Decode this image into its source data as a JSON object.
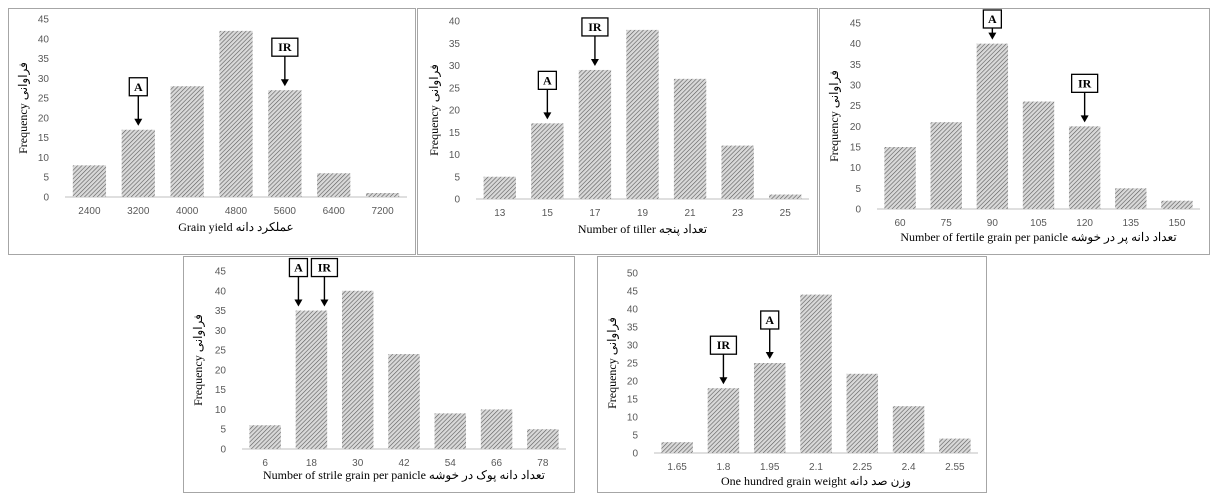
{
  "colors": {
    "bar_pattern_fg": "#5a5a5a",
    "bar_pattern_bg": "#d9d9d9",
    "axis": "#bfbfbf",
    "tick_text": "#595959",
    "border": "#a6a6a6"
  },
  "chart_data": [
    {
      "type": "bar",
      "categories": [
        "2400",
        "3200",
        "4000",
        "4800",
        "5600",
        "6400",
        "7200"
      ],
      "values": [
        8,
        17,
        28,
        42,
        27,
        6,
        1
      ],
      "ylim": [
        0,
        45
      ],
      "ystep": 5,
      "xlabel": "Grain yield عملکرد دانه",
      "ylabel": "Frequency فراوانی",
      "grid": false,
      "annotations": [
        {
          "label": "A",
          "category_index": 1
        },
        {
          "label": "IR",
          "category_index": 4
        }
      ]
    },
    {
      "type": "bar",
      "categories": [
        "13",
        "15",
        "17",
        "19",
        "21",
        "23",
        "25"
      ],
      "values": [
        5,
        17,
        29,
        38,
        27,
        12,
        1
      ],
      "ylim": [
        0,
        40
      ],
      "ystep": 5,
      "xlabel": "Number of tiller تعداد پنجه",
      "ylabel": "Frequency فراوانی",
      "grid": false,
      "annotations": [
        {
          "label": "A",
          "category_index": 1
        },
        {
          "label": "IR",
          "category_index": 2
        }
      ]
    },
    {
      "type": "bar",
      "categories": [
        "60",
        "75",
        "90",
        "105",
        "120",
        "135",
        "150"
      ],
      "values": [
        15,
        21,
        40,
        26,
        20,
        5,
        2
      ],
      "ylim": [
        0,
        45
      ],
      "ystep": 5,
      "xlabel": "Number of fertile grain per panicle تعداد دانه پر در خوشه",
      "ylabel": "Frequency فراوانی",
      "grid": false,
      "annotations": [
        {
          "label": "A",
          "category_index": 2
        },
        {
          "label": "IR",
          "category_index": 4
        }
      ]
    },
    {
      "type": "bar",
      "categories": [
        "6",
        "18",
        "30",
        "42",
        "54",
        "66",
        "78"
      ],
      "values": [
        6,
        35,
        40,
        24,
        9,
        10,
        5
      ],
      "ylim": [
        0,
        45
      ],
      "ystep": 5,
      "xlabel": "Number of strile grain per panicle تعداد دانه پوک در خوشه",
      "ylabel": "Frequency فراوانی",
      "grid": false,
      "annotations": [
        {
          "label": "A",
          "category_index": 1
        },
        {
          "label": "IR",
          "category_index": 1
        }
      ]
    },
    {
      "type": "bar",
      "categories": [
        "1.65",
        "1.8",
        "1.95",
        "2.1",
        "2.25",
        "2.4",
        "2.55"
      ],
      "values": [
        3,
        18,
        25,
        44,
        22,
        13,
        4
      ],
      "ylim": [
        0,
        50
      ],
      "ystep": 5,
      "xlabel": "One hundred grain weight وزن صد دانه",
      "ylabel": "Frequency فراوانی",
      "grid": false,
      "annotations": [
        {
          "label": "IR",
          "category_index": 1
        },
        {
          "label": "A",
          "category_index": 2
        }
      ]
    }
  ]
}
